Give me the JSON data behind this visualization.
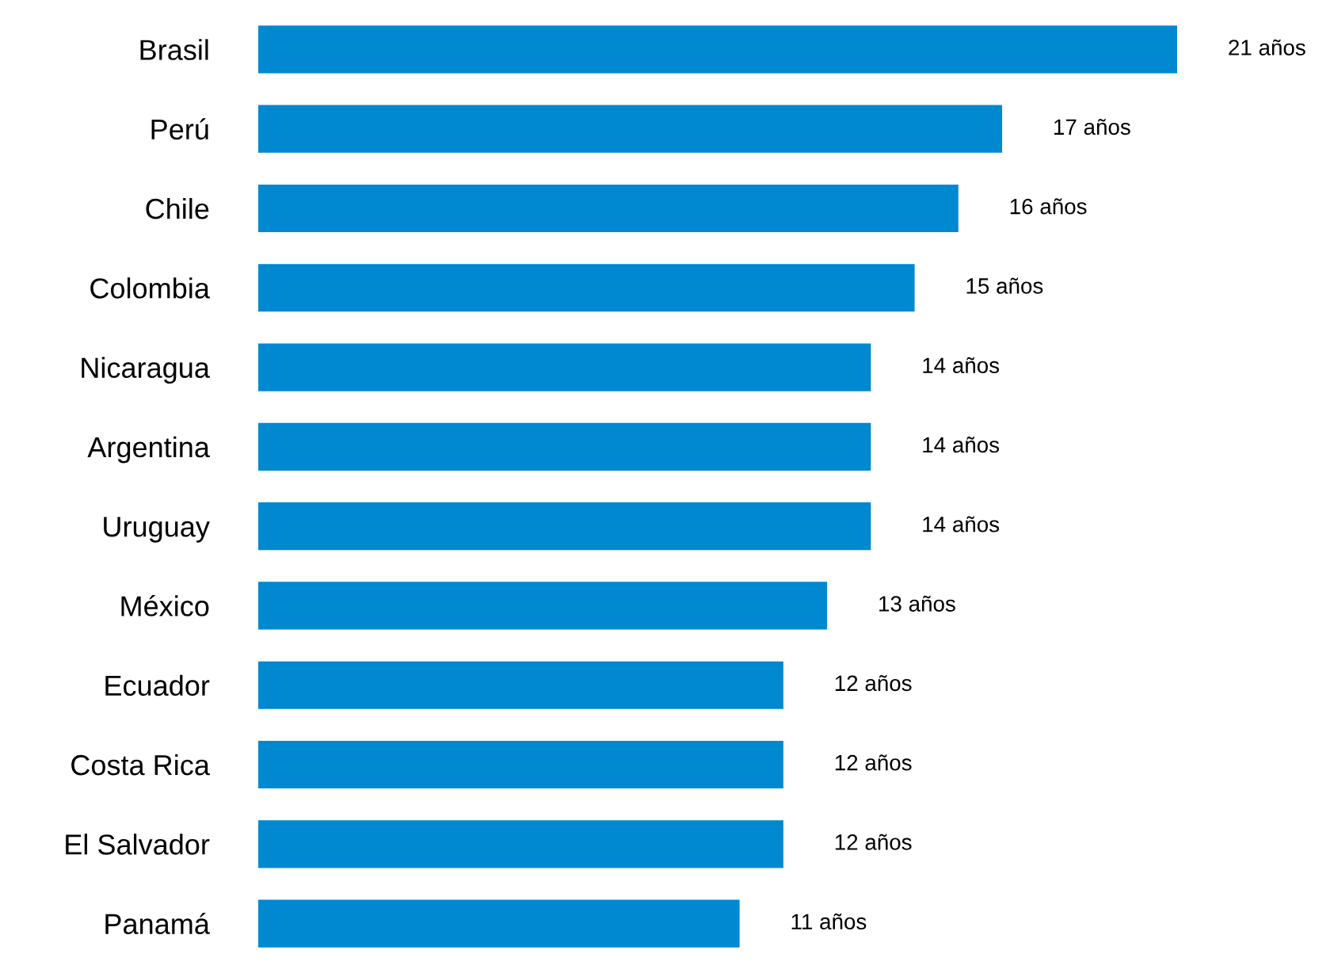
{
  "chart_data": {
    "type": "bar",
    "orientation": "horizontal",
    "categories": [
      "Brasil",
      "Perú",
      "Chile",
      "Colombia",
      "Nicaragua",
      "Argentina",
      "Uruguay",
      "México",
      "Ecuador",
      "Costa Rica",
      "El Salvador",
      "Panamá"
    ],
    "values": [
      21,
      17,
      16,
      15,
      14,
      14,
      14,
      13,
      12,
      12,
      12,
      11
    ],
    "value_labels": [
      "21 años",
      "17 años",
      "16 años",
      "15 años",
      "14 años",
      "14 años",
      "14 años",
      "13 años",
      "12 años",
      "12 años",
      "12 años",
      "11 años"
    ],
    "color": "#0088d1",
    "tick_labels": "y",
    "grid": false,
    "legend": false
  }
}
